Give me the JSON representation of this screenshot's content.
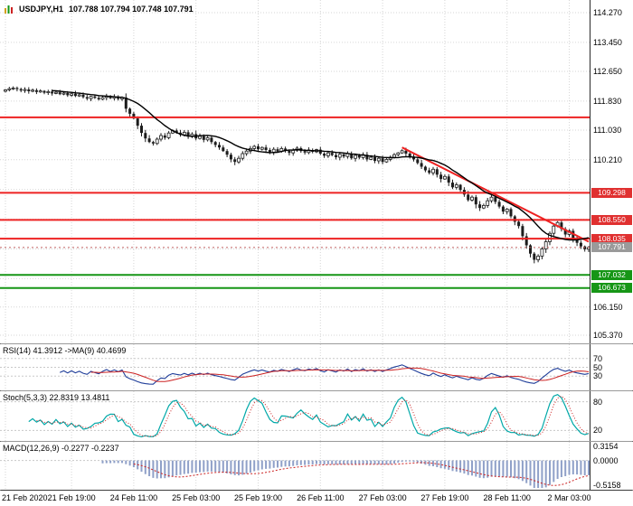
{
  "window": {
    "app": "MetaTrader chart",
    "bg": "#ffffff",
    "border_color": "#6a6a6a"
  },
  "header": {
    "symbol": "USDJPY,H1",
    "quotes": "107.788 107.794 107.748 107.791"
  },
  "colors": {
    "grid": "#d6d6d6",
    "candle": "#1c1c1c",
    "candle_bull_fill": "#ffffff",
    "ma": "#000000",
    "resistance": "#ee2222",
    "support": "#169616",
    "badge_resistance_bg": "#e03030",
    "badge_support_bg": "#169616",
    "badge_current_bg": "#9a9a9a",
    "current_price_line": "#c06060",
    "level_dash": "#c8c8c8",
    "rsi_line": "#1f3d99",
    "rsi_ma": "#cc2222",
    "stoch_k": "#00a8a8",
    "stoch_d": "#cc2222",
    "macd_hist": "#8fa0c8",
    "macd_signal": "#cc2222",
    "axis_text": "#000000"
  },
  "chart_data": {
    "type": "candlestick",
    "symbol": "USDJPY",
    "timeframe": "H1",
    "ohlc_display": {
      "open": "107.788",
      "high": "107.794",
      "low": "107.748",
      "close": "107.791"
    },
    "first_open": 112.1,
    "closes": [
      112.14,
      112.17,
      112.19,
      112.16,
      112.12,
      112.15,
      112.1,
      112.13,
      112.08,
      112.11,
      112.06,
      112.09,
      112.04,
      112.07,
      112.02,
      112.05,
      111.99,
      112.03,
      111.97,
      112.0,
      111.94,
      111.9,
      111.96,
      111.92,
      111.88,
      111.93,
      111.97,
      111.91,
      111.95,
      111.89,
      111.93,
      111.62,
      111.48,
      111.35,
      111.15,
      110.95,
      110.8,
      110.7,
      110.66,
      110.78,
      110.88,
      110.82,
      110.95,
      111.02,
      110.96,
      110.9,
      110.97,
      110.85,
      110.92,
      110.8,
      110.86,
      110.76,
      110.82,
      110.7,
      110.62,
      110.55,
      110.45,
      110.35,
      110.22,
      110.15,
      110.25,
      110.38,
      110.45,
      110.52,
      110.58,
      110.5,
      110.55,
      110.48,
      110.42,
      110.5,
      110.44,
      110.52,
      110.46,
      110.4,
      110.47,
      110.53,
      110.45,
      110.41,
      110.48,
      110.43,
      110.49,
      110.38,
      110.32,
      110.4,
      110.34,
      110.28,
      110.36,
      110.3,
      110.38,
      110.25,
      110.33,
      110.27,
      110.35,
      110.22,
      110.28,
      110.18,
      110.25,
      110.15,
      110.22,
      110.28,
      110.35,
      110.4,
      110.46,
      110.38,
      110.3,
      110.22,
      110.12,
      110.02,
      109.92,
      109.85,
      109.95,
      109.8,
      109.68,
      109.75,
      109.58,
      109.45,
      109.52,
      109.38,
      109.25,
      109.1,
      109.18,
      108.98,
      108.88,
      108.95,
      109.08,
      109.18,
      109.05,
      108.92,
      108.78,
      108.85,
      108.65,
      108.5,
      108.38,
      108.1,
      107.85,
      107.62,
      107.45,
      107.55,
      107.75,
      107.95,
      108.18,
      108.38,
      108.48,
      108.3,
      108.15,
      108.25,
      108.05,
      107.92,
      107.82,
      107.74,
      107.791
    ],
    "price_axis_labels": [
      "114.270",
      "113.450",
      "112.650",
      "111.830",
      "111.030",
      "110.210",
      "109.390",
      "108.570",
      "107.750",
      "106.930",
      "106.150",
      "105.370"
    ],
    "x_labels": [
      {
        "bar": 0,
        "label": "21 Feb 2020"
      },
      {
        "bar": 17,
        "label": "21 Feb 19:00"
      },
      {
        "bar": 33,
        "label": "24 Feb 11:00"
      },
      {
        "bar": 49,
        "label": "25 Feb 03:00"
      },
      {
        "bar": 65,
        "label": "25 Feb 19:00"
      },
      {
        "bar": 81,
        "label": "26 Feb 11:00"
      },
      {
        "bar": 97,
        "label": "27 Feb 03:00"
      },
      {
        "bar": 113,
        "label": "27 Feb 19:00"
      },
      {
        "bar": 129,
        "label": "28 Feb 11:00"
      },
      {
        "bar": 145,
        "label": "2 Mar 03:00"
      }
    ],
    "levels": {
      "resistance": [
        {
          "label": "109.298",
          "price": 109.298
        },
        {
          "label": "108.550",
          "price": 108.55
        },
        {
          "label": "108.035",
          "price": 108.035
        }
      ],
      "support": [
        {
          "label": "107.032",
          "price": 107.032
        },
        {
          "label": "106.673",
          "price": 106.673
        }
      ],
      "upper_resistance_line": {
        "price": 111.38
      },
      "current": {
        "label": "107.791",
        "price": 107.791
      }
    },
    "trendline": {
      "from_bar": 102,
      "from_price": 110.55,
      "to_bar": 150,
      "to_price": 107.95
    },
    "moving_average": {
      "period": 13,
      "type": "sma"
    },
    "indicators": [
      {
        "id": "rsi",
        "label": "RSI(14) 41.3912 ->MA(9) 40.4699",
        "period": 14,
        "ma_period": 9,
        "levels": [
          70,
          50,
          30
        ],
        "axis_labels": [
          "70",
          "50",
          "30"
        ],
        "last": 41.3912,
        "ma_last": 40.4699
      },
      {
        "id": "stoch",
        "label": "Stoch(5,3,3) 22.8319 13.4811",
        "k": 5,
        "d": 3,
        "slowing": 3,
        "levels": [
          80,
          20
        ],
        "axis_labels": [
          "80",
          "20"
        ],
        "last_k": 22.8319,
        "last_d": 13.4811
      },
      {
        "id": "macd",
        "label": "MACD(12,26,9) -0.2277 -0.2237",
        "fast": 12,
        "slow": 26,
        "signal": 9,
        "axis_labels": [
          "0.3154",
          "0.0000",
          "-0.5158"
        ],
        "axis_values": [
          0.3154,
          0.0,
          -0.5158
        ],
        "last": -0.2277,
        "last_signal": -0.2237
      }
    ]
  }
}
